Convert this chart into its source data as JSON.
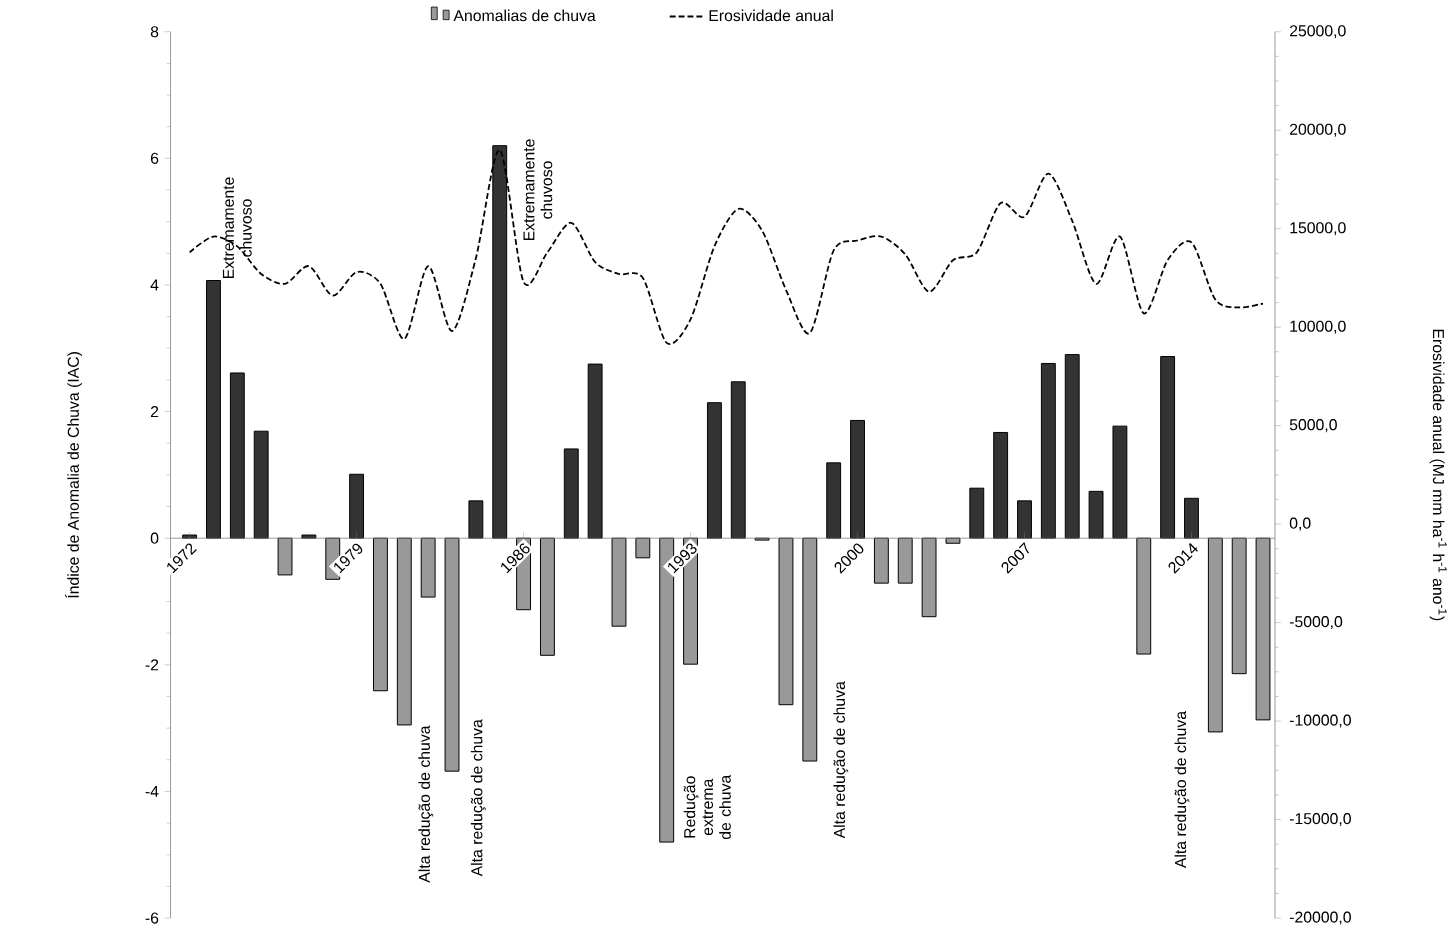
{
  "chart_data": {
    "type": "bar",
    "x": [
      1972,
      1973,
      1974,
      1975,
      1976,
      1977,
      1978,
      1979,
      1980,
      1981,
      1982,
      1983,
      1984,
      1985,
      1986,
      1987,
      1988,
      1989,
      1990,
      1991,
      1992,
      1993,
      1994,
      1995,
      1996,
      1997,
      1998,
      1999,
      2000,
      2001,
      2002,
      2003,
      2004,
      2005,
      2006,
      2007,
      2008,
      2009,
      2010,
      2011,
      2012,
      2013,
      2014,
      2015,
      2016,
      2017
    ],
    "series": [
      {
        "name": "Anomalias de chuva",
        "color": "#999999",
        "values": [
          0.05,
          4.07,
          2.61,
          1.69,
          -0.58,
          0.05,
          -0.65,
          1.01,
          -2.41,
          -2.95,
          -0.93,
          -3.68,
          0.59,
          6.2,
          -1.13,
          -1.85,
          1.41,
          2.75,
          -1.39,
          -0.31,
          -4.8,
          -1.99,
          2.14,
          2.47,
          -0.03,
          -2.63,
          -3.52,
          1.19,
          1.86,
          -0.71,
          -0.71,
          -1.24,
          -0.08,
          0.79,
          1.67,
          0.59,
          2.76,
          2.9,
          0.74,
          1.77,
          -1.83,
          2.87,
          0.63,
          -3.06,
          -2.14,
          -2.87
        ],
        "colors": [
          "#333333",
          "#333333",
          "#333333",
          "#333333",
          "#999999",
          "#333333",
          "#999999",
          "#333333",
          "#999999",
          "#999999",
          "#999999",
          "#999999",
          "#333333",
          "#333333",
          "#999999",
          "#999999",
          "#333333",
          "#333333",
          "#999999",
          "#999999",
          "#999999",
          "#999999",
          "#333333",
          "#333333",
          "#999999",
          "#999999",
          "#999999",
          "#333333",
          "#333333",
          "#999999",
          "#999999",
          "#999999",
          "#999999",
          "#333333",
          "#333333",
          "#333333",
          "#333333",
          "#333333",
          "#333333",
          "#333333",
          "#999999",
          "#333333",
          "#333333",
          "#999999",
          "#999999",
          "#999999"
        ]
      },
      {
        "name": "Erosividade anual",
        "type": "line",
        "axis": "y2",
        "color": "#000000",
        "line_style": "dashed",
        "marker": "none",
        "values": [
          13800,
          14600,
          14100,
          12700,
          12200,
          13100,
          11600,
          12800,
          12200,
          9400,
          13100,
          9800,
          13500,
          19000,
          12300,
          13800,
          15300,
          13300,
          12700,
          12500,
          9200,
          10400,
          14100,
          16000,
          14900,
          11900,
          9700,
          13900,
          14400,
          14600,
          13700,
          11800,
          13400,
          13800,
          16300,
          15600,
          17800,
          15400,
          12200,
          14600,
          10700,
          13400,
          14300,
          11400,
          11000,
          11200
        ]
      }
    ],
    "ylabel": "Índice de Anomalia de Chuva (IAC)",
    "y2label": "Erosividade anual (MJ mm ha$^{-1}$ h$^{-1}$ ano$^{-1}$)",
    "xlim": [
      1971.2,
      2017.5
    ],
    "xticks": [
      1972,
      1979,
      1986,
      1993,
      2000,
      2007,
      2014
    ],
    "ylim": [
      -6,
      8
    ],
    "yticks": [
      -6,
      -4,
      -2,
      0,
      2,
      4,
      6,
      8
    ],
    "y2lim": [
      -20000,
      25000
    ],
    "y2ticks": [
      {
        "value": -20000,
        "label": "-20000,0"
      },
      {
        "value": -15000,
        "label": "-15000,0"
      },
      {
        "value": -10000,
        "label": "-10000,0"
      },
      {
        "value": -5000,
        "label": "-5000,0"
      },
      {
        "value": 0,
        "label": "0,0"
      },
      {
        "value": 5000,
        "label": "5000,0"
      },
      {
        "value": 10000,
        "label": "10000,0"
      },
      {
        "value": 15000,
        "label": "15000,0"
      },
      {
        "value": 20000,
        "label": "20000,0"
      },
      {
        "value": 25000,
        "label": "25000,0"
      }
    ],
    "annotations": [
      "Extremamente chuvoso",
      "Extremamente chuvoso",
      "Alta redução de chuva",
      "Alta redução de chuva",
      "Redução extrema de chuva",
      "Alta redução de chuva",
      "Alta redução de chuva"
    ],
    "legend": "top",
    "grid": false
  }
}
